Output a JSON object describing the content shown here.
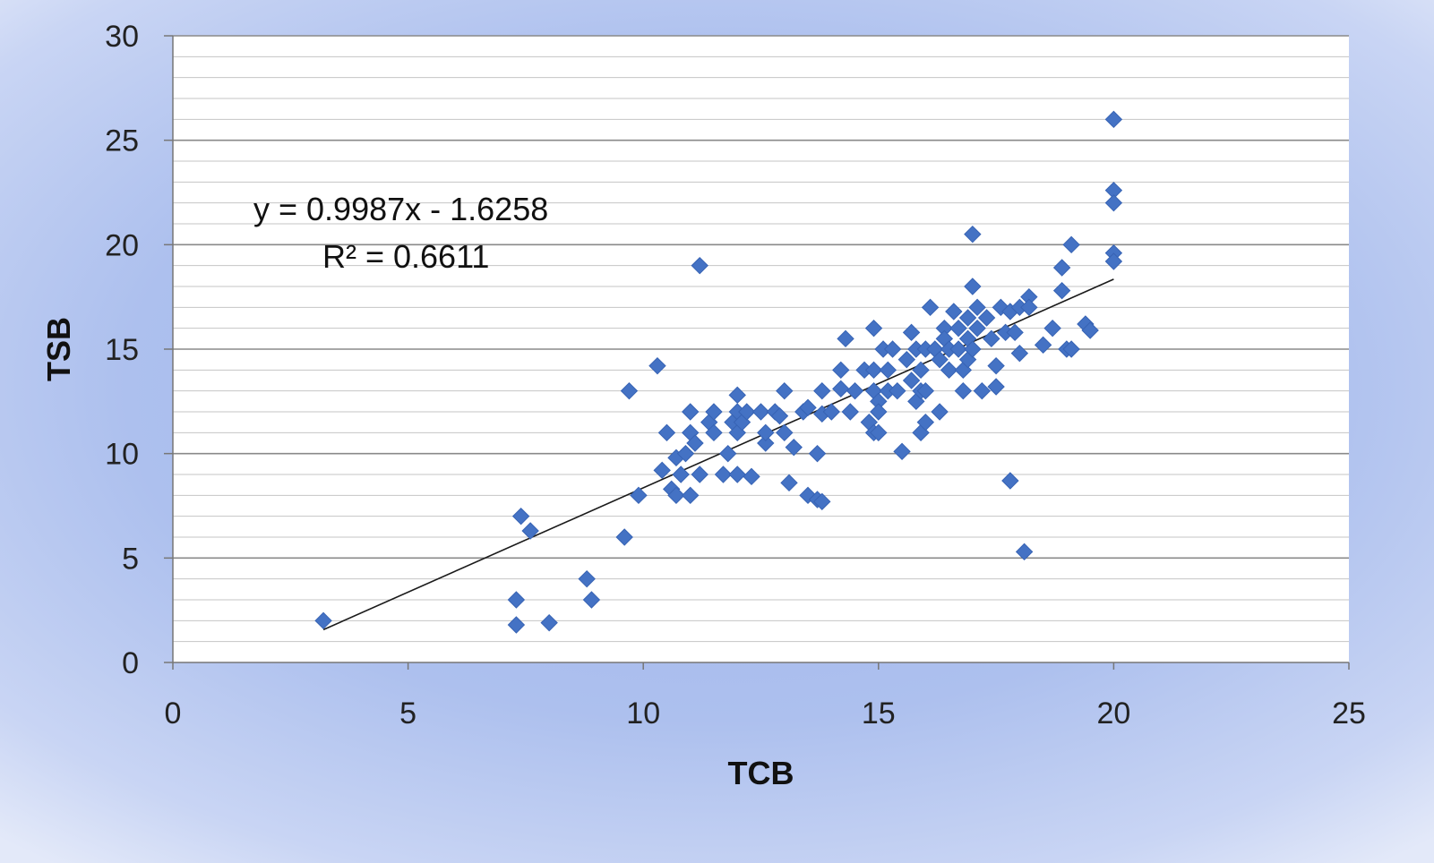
{
  "chart_data": {
    "type": "scatter",
    "xlabel": "TCB",
    "ylabel": "TSB",
    "xlim": [
      0,
      25
    ],
    "ylim": [
      0,
      30
    ],
    "x_ticks": [
      "0",
      "5",
      "10",
      "15",
      "20",
      "25"
    ],
    "y_ticks": [
      "0",
      "5",
      "10",
      "15",
      "20",
      "25",
      "30"
    ],
    "grid": "horizontal",
    "marker_color": "#4472C4",
    "trendline": {
      "slope": 0.9987,
      "intercept": -1.6258,
      "x_range": [
        3.2,
        20
      ]
    },
    "equation_label": "y = 0.9987x - 1.6258",
    "r2_label": "R² = 0.6611",
    "points": [
      [
        3.2,
        2.0
      ],
      [
        7.3,
        1.8
      ],
      [
        7.3,
        3.0
      ],
      [
        7.4,
        7.0
      ],
      [
        7.6,
        6.3
      ],
      [
        8.0,
        1.9
      ],
      [
        8.8,
        4.0
      ],
      [
        8.9,
        3.0
      ],
      [
        9.6,
        6.0
      ],
      [
        9.7,
        13.0
      ],
      [
        9.9,
        8.0
      ],
      [
        10.3,
        14.2
      ],
      [
        10.4,
        9.2
      ],
      [
        10.5,
        11.0
      ],
      [
        10.6,
        8.3
      ],
      [
        10.7,
        8.0
      ],
      [
        10.7,
        9.8
      ],
      [
        10.8,
        9.0
      ],
      [
        10.9,
        10.0
      ],
      [
        11.0,
        12.0
      ],
      [
        11.0,
        11.0
      ],
      [
        11.0,
        8.0
      ],
      [
        11.1,
        10.5
      ],
      [
        11.2,
        19.0
      ],
      [
        11.2,
        9.0
      ],
      [
        11.4,
        11.5
      ],
      [
        11.5,
        12.0
      ],
      [
        11.5,
        11.0
      ],
      [
        11.7,
        9.0
      ],
      [
        11.8,
        10.0
      ],
      [
        11.9,
        11.5
      ],
      [
        12.0,
        12.8
      ],
      [
        12.0,
        12.0
      ],
      [
        12.0,
        11.0
      ],
      [
        12.0,
        9.0
      ],
      [
        12.1,
        11.5
      ],
      [
        12.2,
        12.0
      ],
      [
        12.3,
        8.9
      ],
      [
        12.5,
        12.0
      ],
      [
        12.6,
        10.5
      ],
      [
        12.6,
        11.0
      ],
      [
        12.8,
        12.0
      ],
      [
        12.9,
        11.8
      ],
      [
        13.0,
        13.0
      ],
      [
        13.0,
        11.0
      ],
      [
        13.1,
        8.6
      ],
      [
        13.2,
        10.3
      ],
      [
        13.4,
        12.0
      ],
      [
        13.5,
        12.2
      ],
      [
        13.5,
        8.0
      ],
      [
        13.7,
        10.0
      ],
      [
        13.7,
        7.8
      ],
      [
        13.8,
        13.0
      ],
      [
        13.8,
        11.9
      ],
      [
        13.8,
        7.7
      ],
      [
        14.0,
        12.0
      ],
      [
        14.2,
        14.0
      ],
      [
        14.2,
        13.1
      ],
      [
        14.3,
        15.5
      ],
      [
        14.4,
        12.0
      ],
      [
        14.5,
        13.0
      ],
      [
        14.7,
        14.0
      ],
      [
        14.8,
        11.5
      ],
      [
        14.9,
        16.0
      ],
      [
        14.9,
        14.0
      ],
      [
        14.9,
        13.0
      ],
      [
        14.9,
        11.0
      ],
      [
        15.0,
        12.5
      ],
      [
        15.0,
        12.0
      ],
      [
        15.0,
        11.0
      ],
      [
        15.1,
        15.0
      ],
      [
        15.2,
        14.0
      ],
      [
        15.2,
        13.0
      ],
      [
        15.3,
        15.0
      ],
      [
        15.4,
        13.0
      ],
      [
        15.5,
        10.1
      ],
      [
        15.6,
        14.5
      ],
      [
        15.7,
        15.8
      ],
      [
        15.7,
        13.5
      ],
      [
        15.8,
        15.0
      ],
      [
        15.8,
        12.5
      ],
      [
        15.9,
        14.0
      ],
      [
        15.9,
        13.0
      ],
      [
        15.9,
        11.0
      ],
      [
        16.0,
        15.0
      ],
      [
        16.0,
        13.0
      ],
      [
        16.0,
        11.5
      ],
      [
        16.1,
        17.0
      ],
      [
        16.2,
        15.0
      ],
      [
        16.3,
        14.5
      ],
      [
        16.3,
        12.0
      ],
      [
        16.4,
        16.0
      ],
      [
        16.4,
        15.5
      ],
      [
        16.5,
        14.0
      ],
      [
        16.5,
        15.0
      ],
      [
        16.6,
        16.8
      ],
      [
        16.7,
        16.0
      ],
      [
        16.7,
        15.0
      ],
      [
        16.8,
        14.0
      ],
      [
        16.8,
        13.0
      ],
      [
        16.9,
        16.5
      ],
      [
        16.9,
        15.5
      ],
      [
        16.9,
        14.5
      ],
      [
        17.0,
        20.5
      ],
      [
        17.0,
        18.0
      ],
      [
        17.0,
        15.0
      ],
      [
        17.1,
        17.0
      ],
      [
        17.1,
        16.0
      ],
      [
        17.2,
        13.0
      ],
      [
        17.3,
        16.5
      ],
      [
        17.4,
        15.5
      ],
      [
        17.5,
        14.2
      ],
      [
        17.5,
        13.2
      ],
      [
        17.6,
        17.0
      ],
      [
        17.7,
        15.8
      ],
      [
        17.8,
        16.8
      ],
      [
        17.8,
        8.7
      ],
      [
        17.9,
        15.8
      ],
      [
        18.0,
        17.0
      ],
      [
        18.0,
        14.8
      ],
      [
        18.1,
        5.3
      ],
      [
        18.2,
        17.5
      ],
      [
        18.2,
        17.0
      ],
      [
        18.5,
        15.2
      ],
      [
        18.7,
        16.0
      ],
      [
        18.9,
        18.9
      ],
      [
        18.9,
        17.8
      ],
      [
        19.0,
        15.0
      ],
      [
        19.1,
        20.0
      ],
      [
        19.1,
        15.0
      ],
      [
        19.4,
        16.2
      ],
      [
        19.5,
        15.9
      ],
      [
        20.0,
        26.0
      ],
      [
        20.0,
        22.6
      ],
      [
        20.0,
        22.0
      ],
      [
        20.0,
        19.6
      ],
      [
        20.0,
        19.2
      ]
    ]
  }
}
